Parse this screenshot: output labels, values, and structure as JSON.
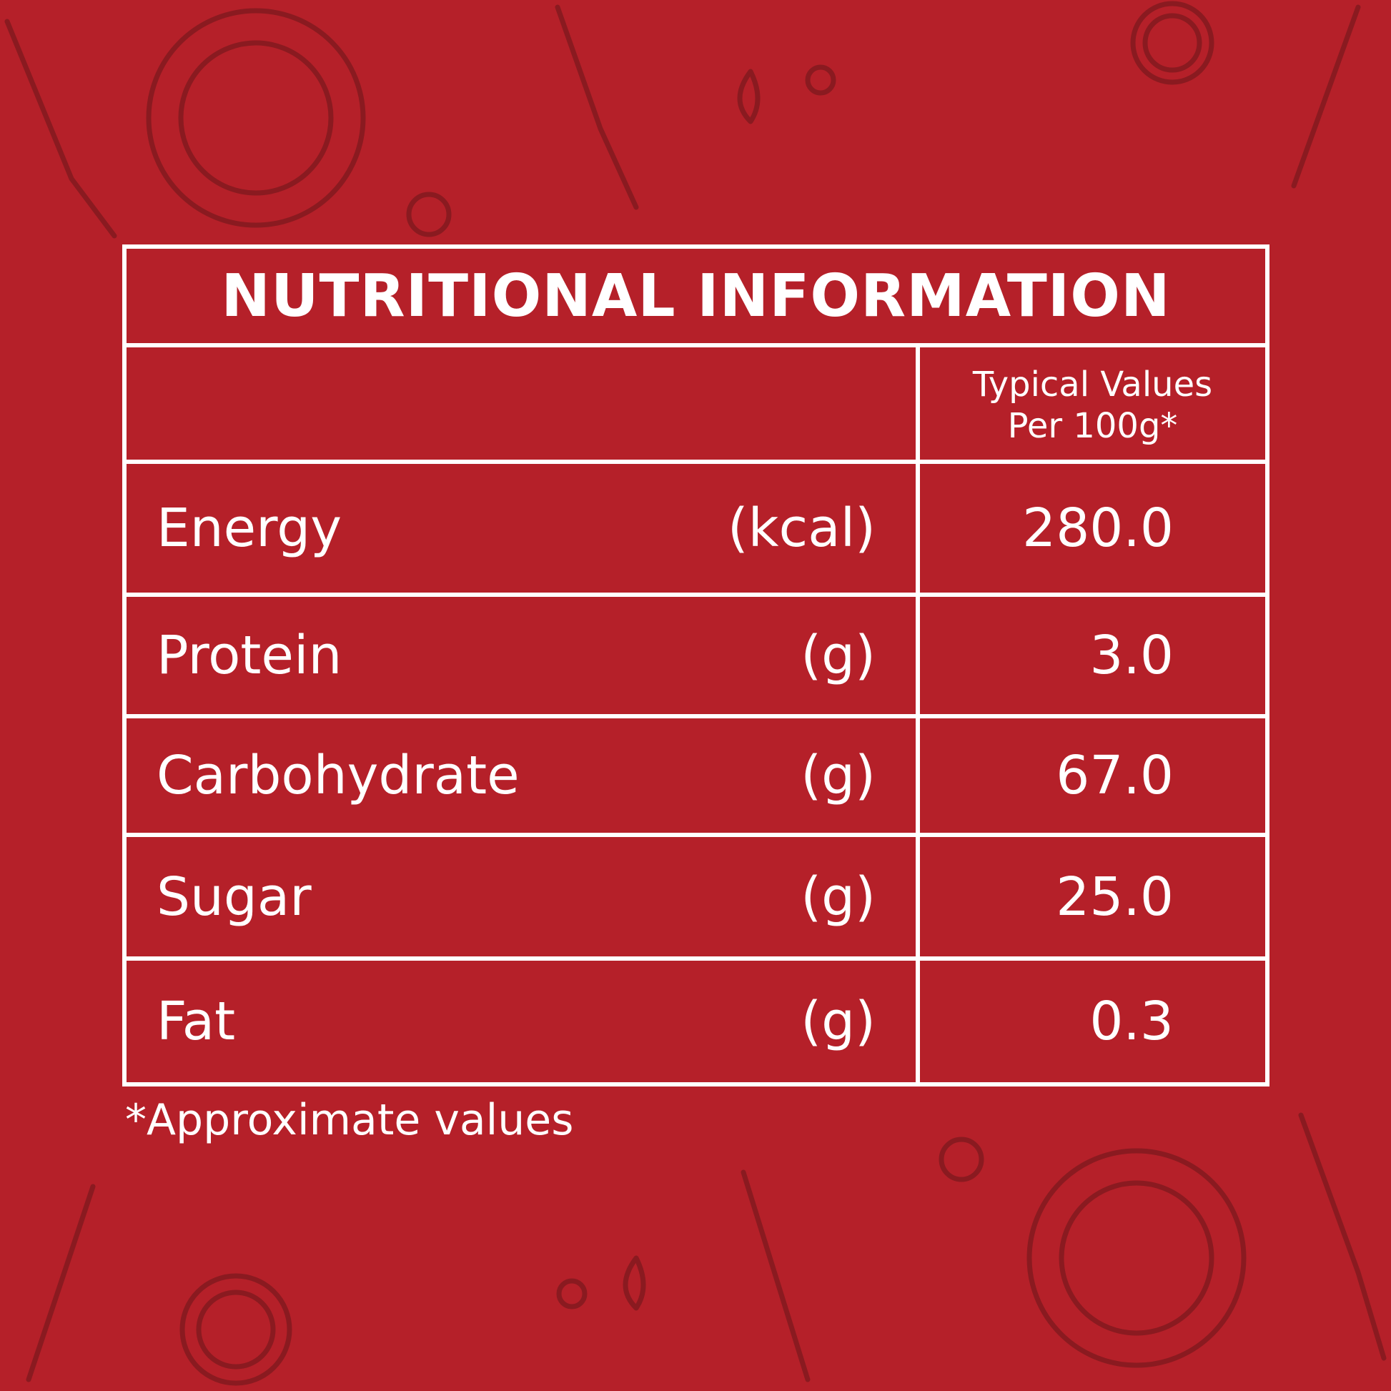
{
  "title": "NUTRITIONAL INFORMATION",
  "header": {
    "line1": "Typical Values",
    "line2": "Per 100g*"
  },
  "rows": [
    {
      "label": "Energy",
      "unit": "(kcal)",
      "value": "280.0"
    },
    {
      "label": "Protein",
      "unit": "(g)",
      "value": "3.0"
    },
    {
      "label": "Carbohydrate",
      "unit": "(g)",
      "value": "67.0"
    },
    {
      "label": "Sugar",
      "unit": "(g)",
      "value": "25.0"
    },
    {
      "label": "Fat",
      "unit": "(g)",
      "value": "0.3"
    }
  ],
  "footnote": "*Approximate values",
  "colors": {
    "background": "#b52029",
    "doodle": "#8a1a20",
    "text": "#ffffff"
  }
}
